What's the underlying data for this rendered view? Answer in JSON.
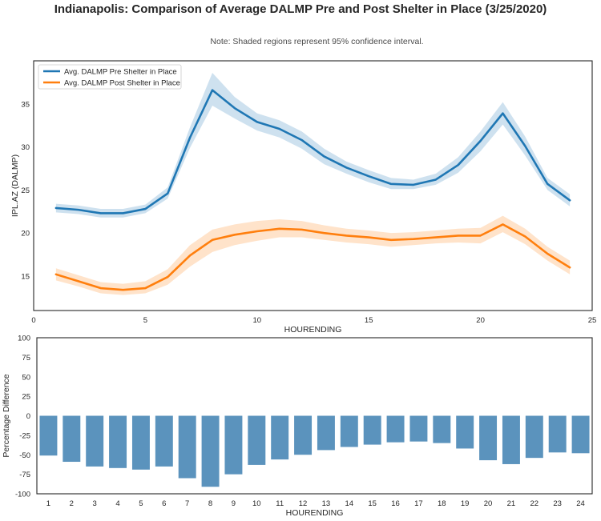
{
  "title": "Indianapolis: Comparison of Average DALMP Pre and Post Shelter in Place (3/25/2020)",
  "note": "Note: Shaded regions represent 95% confidence interval.",
  "colors": {
    "pre": "#1f77b4",
    "post": "#ff7f0e",
    "bar": "#5b93bd",
    "frame": "#262626"
  },
  "chart_data": [
    {
      "type": "line",
      "xlabel": "HOURENDING",
      "ylabel": "IPL.AZ (DALMP)",
      "xlim": [
        0,
        25
      ],
      "ylim": [
        11,
        40
      ],
      "xticks": [
        0,
        5,
        10,
        15,
        20,
        25
      ],
      "yticks": [
        15,
        20,
        25,
        30,
        35
      ],
      "grid": false,
      "legend_position": "top-left",
      "x": [
        1,
        2,
        3,
        4,
        5,
        6,
        7,
        8,
        9,
        10,
        11,
        12,
        13,
        14,
        15,
        16,
        17,
        18,
        19,
        20,
        21,
        22,
        23,
        24
      ],
      "series": [
        {
          "name": "Avg. DALMP Pre Shelter in Place",
          "values": [
            22.9,
            22.7,
            22.3,
            22.3,
            22.8,
            24.6,
            31.1,
            36.6,
            34.5,
            32.9,
            32.1,
            30.8,
            28.9,
            27.6,
            26.6,
            25.7,
            25.6,
            26.2,
            27.9,
            30.7,
            33.9,
            30.1,
            25.7,
            23.8
          ],
          "ci_lower": [
            22.4,
            22.2,
            21.8,
            21.8,
            22.3,
            24.0,
            29.9,
            34.8,
            33.3,
            31.9,
            31.1,
            29.8,
            28.0,
            26.9,
            25.9,
            25.1,
            25.1,
            25.6,
            27.0,
            29.5,
            32.6,
            29.0,
            25.0,
            23.1
          ],
          "ci_upper": [
            23.4,
            23.2,
            22.8,
            22.8,
            23.3,
            25.3,
            32.3,
            38.6,
            35.8,
            33.9,
            33.1,
            31.8,
            29.8,
            28.3,
            27.3,
            26.4,
            26.2,
            26.9,
            28.8,
            31.8,
            35.2,
            31.2,
            26.4,
            24.5
          ]
        },
        {
          "name": "Avg. DALMP Post Shelter in Place",
          "values": [
            15.2,
            14.4,
            13.6,
            13.4,
            13.6,
            14.9,
            17.4,
            19.2,
            19.8,
            20.2,
            20.5,
            20.4,
            20.0,
            19.7,
            19.5,
            19.2,
            19.3,
            19.5,
            19.7,
            19.7,
            21.0,
            19.6,
            17.6,
            16.0
          ],
          "ci_lower": [
            14.5,
            13.8,
            13.0,
            12.8,
            13.0,
            14.0,
            16.1,
            17.8,
            18.6,
            19.1,
            19.5,
            19.5,
            19.2,
            18.9,
            18.7,
            18.4,
            18.6,
            18.8,
            18.9,
            18.8,
            20.1,
            18.7,
            16.8,
            15.2
          ],
          "ci_upper": [
            15.9,
            15.1,
            14.3,
            14.1,
            14.4,
            15.8,
            18.6,
            20.4,
            21.0,
            21.4,
            21.6,
            21.4,
            20.9,
            20.5,
            20.3,
            20.0,
            20.1,
            20.3,
            20.5,
            20.6,
            22.0,
            20.5,
            18.4,
            16.8
          ]
        }
      ]
    },
    {
      "type": "bar",
      "xlabel": "HOURENDING",
      "ylabel": "Percentage Difference",
      "ylim": [
        -100,
        100
      ],
      "yticks": [
        100,
        75,
        50,
        25,
        0,
        -25,
        -50,
        -75,
        -100
      ],
      "grid": false,
      "categories": [
        "1",
        "2",
        "3",
        "4",
        "5",
        "6",
        "7",
        "8",
        "9",
        "10",
        "11",
        "12",
        "13",
        "14",
        "15",
        "16",
        "17",
        "18",
        "19",
        "20",
        "21",
        "22",
        "23",
        "24"
      ],
      "values": [
        -51,
        -59,
        -65,
        -67,
        -69,
        -65,
        -80,
        -91,
        -75,
        -63,
        -56,
        -50,
        -44,
        -40,
        -37,
        -34,
        -33,
        -35,
        -42,
        -57,
        -62,
        -54,
        -47,
        -48
      ]
    }
  ]
}
